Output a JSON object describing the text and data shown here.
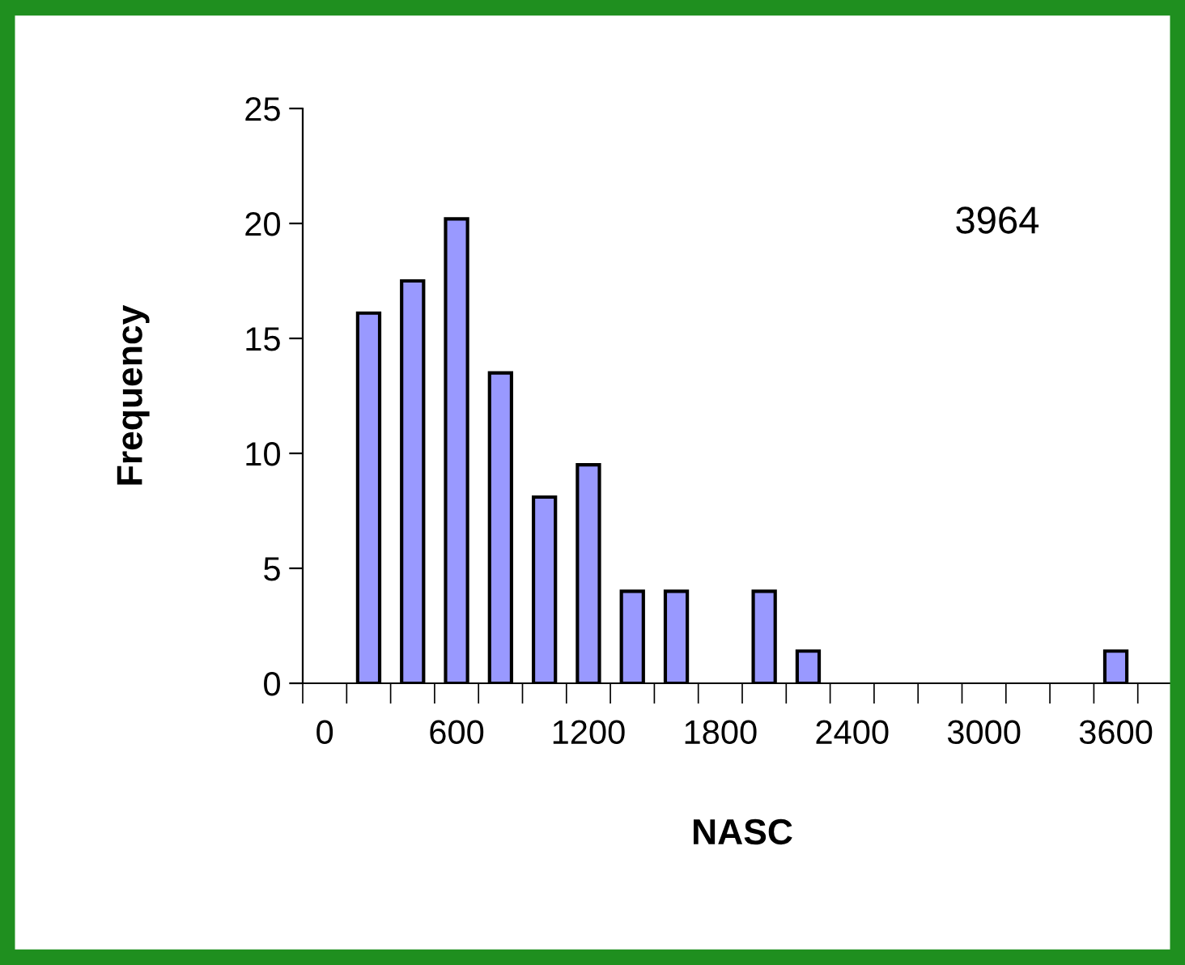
{
  "chart_data": {
    "type": "bar",
    "xlabel": "NASC",
    "ylabel": "Frequency",
    "categories": [
      "0",
      null,
      null,
      "600",
      null,
      null,
      "1200",
      null,
      null,
      "1800",
      null,
      null,
      "2400",
      null,
      null,
      "3000",
      null,
      null,
      "3600",
      null
    ],
    "values": [
      0,
      16.1,
      17.5,
      20.2,
      13.5,
      8.1,
      9.5,
      4,
      4,
      0,
      4,
      1.4,
      0,
      0,
      0,
      0,
      0,
      0,
      1.4,
      0
    ],
    "color": "#9999ff",
    "ylim": [
      0,
      25
    ],
    "yticks": [
      0,
      5,
      10,
      15,
      20,
      25
    ],
    "annotations": [
      "3964"
    ]
  }
}
